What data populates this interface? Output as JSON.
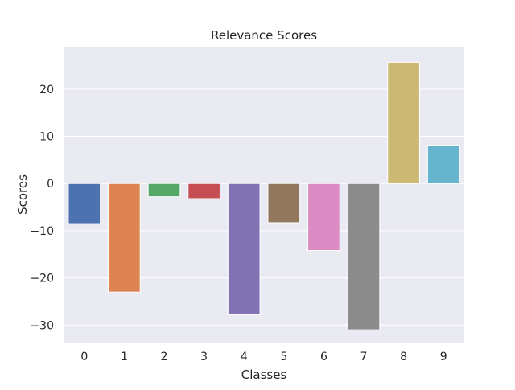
{
  "chart_data": {
    "type": "bar",
    "title": "Relevance Scores",
    "xlabel": "Classes",
    "ylabel": "Scores",
    "categories": [
      "0",
      "1",
      "2",
      "3",
      "4",
      "5",
      "6",
      "7",
      "8",
      "9"
    ],
    "values": [
      -8.5,
      -23.0,
      -2.8,
      -3.2,
      -27.8,
      -8.3,
      -14.2,
      -31.0,
      25.7,
      8.1
    ],
    "ylim": [
      -33.7,
      29.0
    ],
    "yticks": [
      20,
      10,
      0,
      -10,
      -20,
      -30
    ],
    "ytick_labels": [
      "20",
      "10",
      "0",
      "−10",
      "−20",
      "−30"
    ],
    "grid": true,
    "colors": [
      "#4c72b0",
      "#dd8452",
      "#55a868",
      "#c44e52",
      "#8172b3",
      "#937860",
      "#da8bc3",
      "#8c8c8c",
      "#ccb974",
      "#64b5cd"
    ],
    "background": "#eaeaf2",
    "grid_color": "#ffffff"
  }
}
